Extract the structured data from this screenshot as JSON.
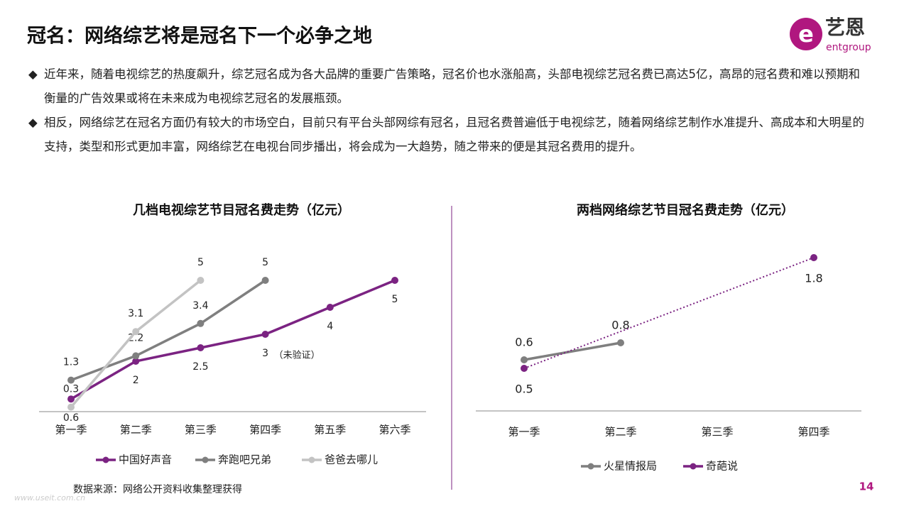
{
  "header": {
    "title": "冠名：网络综艺将是冠名下一个必争之地",
    "logo_main": "艺恩",
    "logo_sub": "entgroup"
  },
  "bullets": [
    "近年来，随着电视综艺的热度飙升，综艺冠名成为各大品牌的重要广告策略，冠名价也水涨船高，头部电视综艺冠名费已高达5亿，高昂的冠名费和难以预期和衡量的广告效果或将在未来成为电视综艺冠名的发展瓶颈。",
    "相反，网络综艺在冠名方面仍有较大的市场空白，目前只有平台头部网综有冠名，且冠名费普遍低于电视综艺，随着网络综艺制作水准提升、高成本和大明星的支持，类型和形式更加丰富，网络综艺在电视台同步播出，将会成为一大趋势，随之带来的便是其冠名费用的提升。"
  ],
  "chart_data": [
    {
      "type": "line",
      "title": "几档电视综艺节目冠名费走势（亿元）",
      "categories": [
        "第一季",
        "第二季",
        "第三季",
        "第四季",
        "第五季",
        "第六季"
      ],
      "ylim": [
        0,
        5
      ],
      "series": [
        {
          "name": "中国好声音",
          "color": "#7b2382",
          "values": [
            0.6,
            2,
            2.5,
            3,
            4,
            5
          ]
        },
        {
          "name": "奔跑吧兄弟",
          "color": "#7f7f7f",
          "values": [
            1.3,
            2.2,
            3.4,
            5,
            null,
            null
          ]
        },
        {
          "name": "爸爸去哪儿",
          "color": "#c3c3c3",
          "values": [
            0.3,
            3.1,
            5,
            null,
            null,
            null
          ]
        }
      ],
      "annotations": [
        "（未验证）"
      ]
    },
    {
      "type": "line",
      "title": "两档网络综艺节目冠名费走势（亿元）",
      "categories": [
        "第一季",
        "第二季",
        "第三季",
        "第四季"
      ],
      "ylim": [
        0,
        1.8
      ],
      "series": [
        {
          "name": "火星情报局",
          "color": "#7f7f7f",
          "values": [
            0.6,
            0.8,
            null,
            null
          ]
        },
        {
          "name": "奇葩说",
          "color": "#7b2382",
          "values": [
            0.5,
            null,
            null,
            1.8
          ],
          "line_style": "dotted",
          "span_gaps": true
        }
      ]
    }
  ],
  "footer": {
    "source": "数据来源：网络公开资料收集整理获得",
    "page": "14",
    "watermark": "www.useit.com.cn"
  }
}
